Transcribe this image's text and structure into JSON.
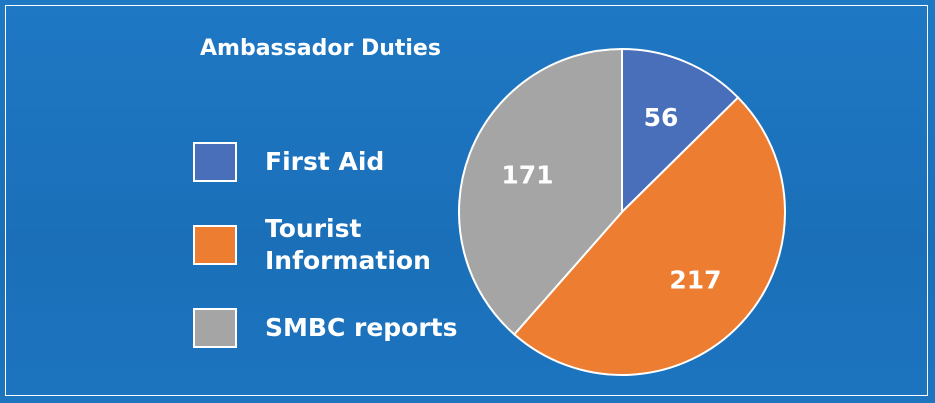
{
  "chart_data": {
    "type": "pie",
    "title": "Ambassador Duties",
    "categories": [
      "First Aid",
      "Tourist Information",
      "SMBC reports"
    ],
    "values": [
      56,
      217,
      171
    ],
    "colors": [
      "#4a6fba",
      "#ed7d31",
      "#a5a5a5"
    ],
    "legend": "left"
  }
}
